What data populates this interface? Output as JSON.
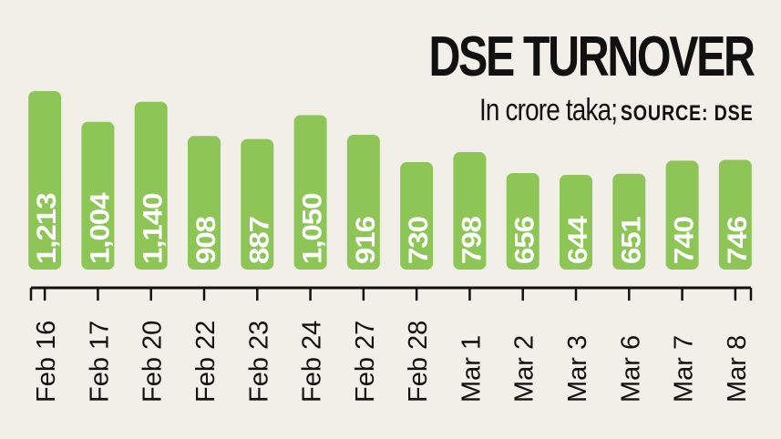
{
  "header": {
    "title": "DSE TURNOVER",
    "unit": "In crore taka;",
    "source": "SOURCE: DSE"
  },
  "colors": {
    "bar": "#8dc657",
    "label": "#ffffff",
    "axis": "#111111",
    "background": "#f2efe9"
  },
  "chart_data": {
    "type": "bar",
    "title": "DSE TURNOVER",
    "subtitle": "In crore taka; SOURCE: DSE",
    "xlabel": "",
    "ylabel": "",
    "categories": [
      "Feb 16",
      "Feb 17",
      "Feb 20",
      "Feb 22",
      "Feb 23",
      "Feb 24",
      "Feb 27",
      "Feb 28",
      "Mar 1",
      "Mar 2",
      "Mar 3",
      "Mar 6",
      "Mar 7",
      "Mar 8"
    ],
    "value_labels": [
      "1,213",
      "1,004",
      "1,140",
      "908",
      "887",
      "1,050",
      "916",
      "730",
      "798",
      "656",
      "644",
      "651",
      "740",
      "746"
    ],
    "values": [
      1213,
      1004,
      1140,
      908,
      887,
      1050,
      916,
      730,
      798,
      656,
      644,
      651,
      740,
      746
    ],
    "grid": false,
    "legend": "none"
  }
}
